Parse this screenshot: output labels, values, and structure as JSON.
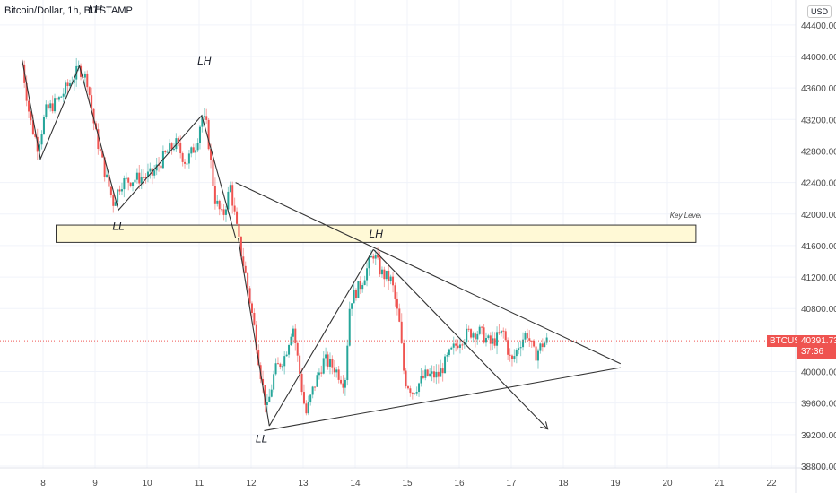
{
  "header": {
    "title": "Bitcoin/Dollar, 1h, BITSTAMP",
    "currency_badge": "USD"
  },
  "price_tag": {
    "symbol": "BTCUSD",
    "price": "40391.73",
    "countdown": "37:36",
    "color": "#ef5350"
  },
  "colors": {
    "up": "#26a69a",
    "down": "#ef5350",
    "grid": "#f0f3fa",
    "key_level_fill": "#fff9d6",
    "key_level_border": "#333333",
    "trendline": "#333333"
  },
  "chart_data": {
    "type": "candlestick",
    "title": "Bitcoin/Dollar, 1h, BITSTAMP",
    "xlabel": "",
    "ylabel": "USD",
    "x_ticks": [
      "8",
      "9",
      "10",
      "11",
      "12",
      "13",
      "14",
      "15",
      "16",
      "17",
      "18",
      "19",
      "20",
      "21",
      "22"
    ],
    "y_ticks": [
      "44400.00",
      "44000.00",
      "43600.00",
      "43200.00",
      "42800.00",
      "42400.00",
      "42000.00",
      "41600.00",
      "41200.00",
      "40800.00",
      "40000.00",
      "39600.00",
      "39200.00",
      "38800.00"
    ],
    "ylim": [
      38800,
      44400
    ],
    "last_price": 40391.73,
    "annotations": [
      {
        "text": "LH",
        "day": 9.0,
        "price": 44550
      },
      {
        "text": "LH",
        "day": 11.1,
        "price": 43900
      },
      {
        "text": "LL",
        "day": 9.45,
        "price": 41800
      },
      {
        "text": "LH",
        "day": 14.4,
        "price": 41700
      },
      {
        "text": "LL",
        "day": 12.2,
        "price": 39100
      },
      {
        "text": "Key Level",
        "day": 20.35,
        "price": 41950
      }
    ],
    "key_level_zone": {
      "label": "Key Level",
      "from_day": 8.25,
      "to_day": 20.55,
      "low": 41640,
      "high": 41860
    },
    "lines": [
      {
        "name": "zigzag",
        "points": [
          [
            7.6,
            43950
          ],
          [
            7.95,
            42700
          ],
          [
            8.7,
            43880
          ],
          [
            9.45,
            42050
          ],
          [
            11.05,
            43250
          ],
          [
            11.7,
            41700
          ]
        ]
      },
      {
        "name": "zigzag-2",
        "points": [
          [
            12.35,
            39310
          ],
          [
            14.35,
            41550
          ]
        ]
      },
      {
        "name": "zigzag-2b",
        "points": [
          [
            11.75,
            41700
          ],
          [
            12.35,
            39310
          ]
        ]
      },
      {
        "name": "descending-resistance",
        "points": [
          [
            11.7,
            42400
          ],
          [
            19.1,
            40100
          ]
        ]
      },
      {
        "name": "ascending-support",
        "points": [
          [
            12.25,
            39250
          ],
          [
            19.1,
            40050
          ]
        ]
      },
      {
        "name": "breakdown-arrow",
        "points": [
          [
            14.35,
            41550
          ],
          [
            17.7,
            39270
          ]
        ],
        "arrow": true
      }
    ],
    "candles_note": "approximate hourly OHLC path generated from waypoints",
    "waypoints": [
      [
        7.6,
        43900
      ],
      [
        7.75,
        43200
      ],
      [
        7.9,
        42850
      ],
      [
        8.05,
        43300
      ],
      [
        8.3,
        43450
      ],
      [
        8.5,
        43650
      ],
      [
        8.7,
        43850
      ],
      [
        8.85,
        43700
      ],
      [
        9.0,
        43050
      ],
      [
        9.2,
        42500
      ],
      [
        9.35,
        42150
      ],
      [
        9.5,
        42400
      ],
      [
        9.8,
        42450
      ],
      [
        10.1,
        42500
      ],
      [
        10.35,
        42750
      ],
      [
        10.55,
        42900
      ],
      [
        10.75,
        42650
      ],
      [
        10.95,
        42900
      ],
      [
        11.05,
        43250
      ],
      [
        11.15,
        43100
      ],
      [
        11.3,
        42200
      ],
      [
        11.45,
        41950
      ],
      [
        11.6,
        42350
      ],
      [
        11.75,
        41700
      ],
      [
        11.9,
        41200
      ],
      [
        12.05,
        40600
      ],
      [
        12.2,
        39900
      ],
      [
        12.3,
        39500
      ],
      [
        12.45,
        40000
      ],
      [
        12.65,
        40200
      ],
      [
        12.8,
        40600
      ],
      [
        12.95,
        39900
      ],
      [
        13.05,
        39450
      ],
      [
        13.2,
        39800
      ],
      [
        13.4,
        40150
      ],
      [
        13.6,
        40050
      ],
      [
        13.8,
        39850
      ],
      [
        13.9,
        40900
      ],
      [
        14.1,
        41100
      ],
      [
        14.35,
        41500
      ],
      [
        14.5,
        41250
      ],
      [
        14.7,
        41150
      ],
      [
        14.85,
        40600
      ],
      [
        14.95,
        39900
      ],
      [
        15.1,
        39750
      ],
      [
        15.35,
        39950
      ],
      [
        15.6,
        39950
      ],
      [
        15.8,
        40200
      ],
      [
        16.0,
        40400
      ],
      [
        16.2,
        40500
      ],
      [
        16.4,
        40500
      ],
      [
        16.6,
        40350
      ],
      [
        16.85,
        40500
      ],
      [
        17.0,
        40100
      ],
      [
        17.15,
        40350
      ],
      [
        17.3,
        40500
      ],
      [
        17.45,
        40200
      ],
      [
        17.6,
        40350
      ],
      [
        17.7,
        40391
      ]
    ]
  }
}
